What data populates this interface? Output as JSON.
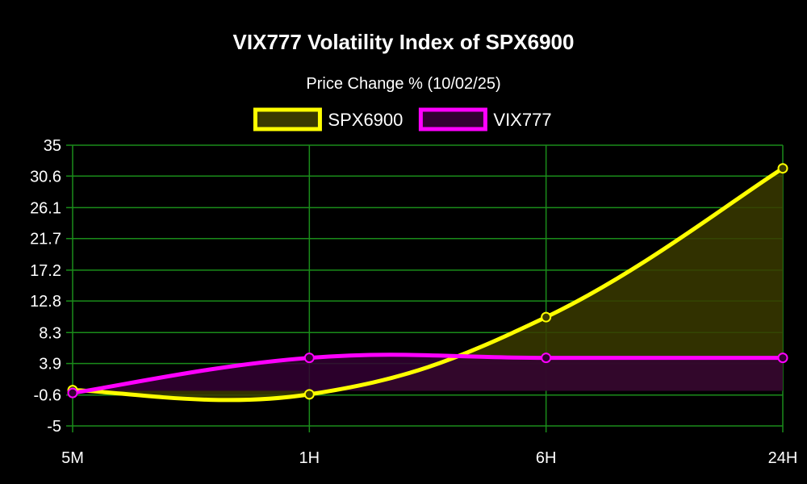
{
  "chart_data": {
    "type": "line",
    "title": "VIX777 Volatility Index of SPX6900",
    "subtitle": "Price Change % (10/02/25)",
    "categories": [
      "5M",
      "1H",
      "6H",
      "24H"
    ],
    "series": [
      {
        "name": "SPX6900",
        "values": [
          0.1,
          -0.5,
          10.5,
          31.7
        ],
        "color": "#ffff00",
        "fill": "#3a3a00"
      },
      {
        "name": "VIX777",
        "values": [
          -0.3,
          4.7,
          4.7,
          4.7
        ],
        "color": "#ff00ff",
        "fill": "#330033"
      }
    ],
    "y_ticks": [
      "35",
      "30.6",
      "26.1",
      "21.7",
      "17.2",
      "12.8",
      "8.3",
      "3.9",
      "-0.6",
      "-5"
    ],
    "ylim": [
      -5,
      35
    ],
    "legend_position": "top-center",
    "grid": true,
    "grid_color": "#1a8c1a",
    "background": "#000000"
  }
}
